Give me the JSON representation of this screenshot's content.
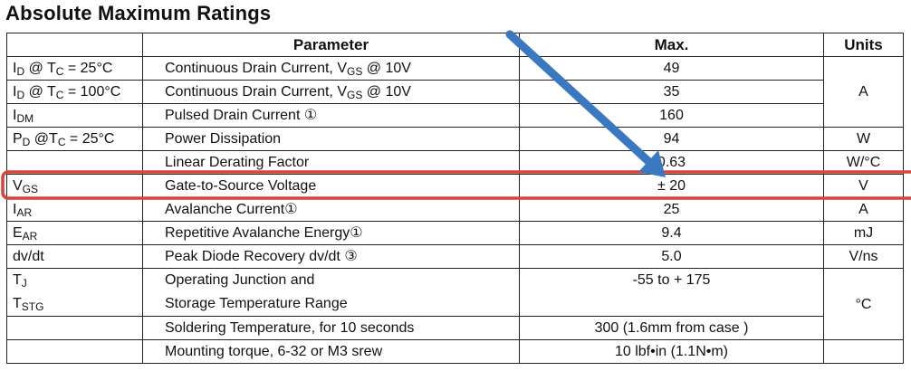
{
  "title": "Absolute Maximum Ratings",
  "headers": {
    "symbol": "",
    "parameter": "Parameter",
    "max": "Max.",
    "units": "Units"
  },
  "rows": [
    {
      "symbol": [
        [
          "I",
          ""
        ],
        [
          "D",
          "sub"
        ],
        [
          " @ T",
          ""
        ],
        [
          "C",
          "sub"
        ],
        [
          " = 25°C",
          ""
        ]
      ],
      "parameter": [
        [
          "Continuous Drain Current, V",
          ""
        ],
        [
          "GS",
          "sub"
        ],
        [
          " @ 10V",
          ""
        ]
      ],
      "max": "49",
      "units": "A"
    },
    {
      "symbol": [
        [
          "I",
          ""
        ],
        [
          "D",
          "sub"
        ],
        [
          " @ T",
          ""
        ],
        [
          "C",
          "sub"
        ],
        [
          " = 100°C",
          ""
        ]
      ],
      "parameter": [
        [
          "Continuous Drain Current, V",
          ""
        ],
        [
          "GS",
          "sub"
        ],
        [
          " @ 10V",
          ""
        ]
      ],
      "max": "35",
      "units": null
    },
    {
      "symbol": [
        [
          "I",
          ""
        ],
        [
          "DM",
          "sub"
        ]
      ],
      "parameter": [
        [
          "Pulsed Drain Current ①",
          ""
        ]
      ],
      "max": "160",
      "units": null
    },
    {
      "symbol": [
        [
          "P",
          ""
        ],
        [
          "D",
          "sub"
        ],
        [
          " @T",
          ""
        ],
        [
          "C",
          "sub"
        ],
        [
          " = 25°C",
          ""
        ]
      ],
      "parameter": [
        [
          "Power Dissipation",
          ""
        ]
      ],
      "max": "94",
      "units": "W"
    },
    {
      "symbol": [],
      "parameter": [
        [
          "Linear Derating Factor",
          ""
        ]
      ],
      "max": "0.63",
      "units": "W/°C"
    },
    {
      "symbol": [
        [
          "V",
          ""
        ],
        [
          "GS",
          "sub"
        ]
      ],
      "parameter": [
        [
          "Gate-to-Source Voltage",
          ""
        ]
      ],
      "max": "± 20",
      "units": "V"
    },
    {
      "symbol": [
        [
          "I",
          ""
        ],
        [
          "AR",
          "sub"
        ]
      ],
      "parameter": [
        [
          "Avalanche Current①",
          ""
        ]
      ],
      "max": "25",
      "units": "A"
    },
    {
      "symbol": [
        [
          "E",
          ""
        ],
        [
          "AR",
          "sub"
        ]
      ],
      "parameter": [
        [
          "Repetitive Avalanche Energy①",
          ""
        ]
      ],
      "max": "9.4",
      "units": "mJ"
    },
    {
      "symbol": [
        [
          "dv/dt",
          ""
        ]
      ],
      "parameter": [
        [
          "Peak Diode Recovery dv/dt ③",
          ""
        ]
      ],
      "max": "5.0",
      "units": "V/ns"
    },
    {
      "symbol": [
        [
          "T",
          ""
        ],
        [
          "J",
          "sub"
        ],
        [
          "\n",
          ""
        ],
        [
          "T",
          ""
        ],
        [
          "STG",
          "sub"
        ]
      ],
      "parameter": [
        [
          "Operating Junction and",
          ""
        ],
        [
          "\n",
          ""
        ],
        [
          "Storage Temperature Range",
          ""
        ]
      ],
      "max": "-55  to + 175",
      "units": "°C"
    },
    {
      "symbol": [],
      "parameter": [
        [
          "Soldering Temperature, for 10 seconds",
          ""
        ]
      ],
      "max": "300 (1.6mm from case )",
      "units": null
    },
    {
      "symbol": [],
      "parameter": [
        [
          "Mounting torque, 6-32 or M3 srew",
          ""
        ]
      ],
      "max": "10 lbf•in (1.1N•m)",
      "units": ""
    }
  ],
  "annotations": {
    "highlight_color": "#d9433a",
    "arrow_color": "#3a78c2"
  }
}
